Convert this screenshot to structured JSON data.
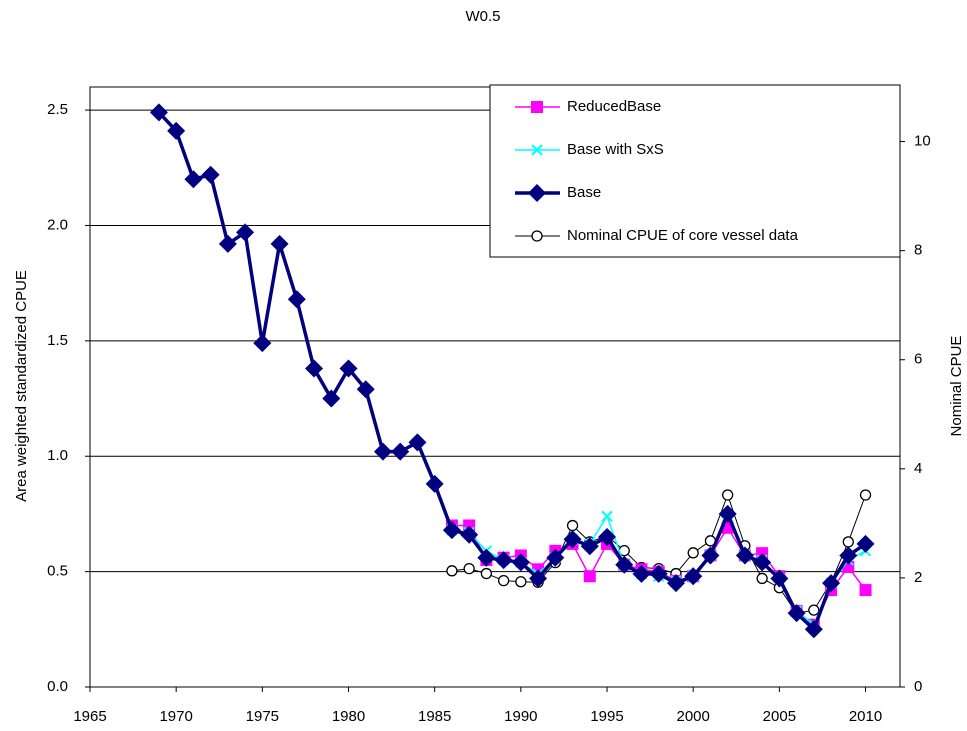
{
  "chart_data": {
    "type": "line",
    "title": "W0.5",
    "y_label": "Area weighted standardized CPUE",
    "y2_label": "Nominal CPUE",
    "xlim": [
      1965,
      2012
    ],
    "xticks": [
      1965,
      1970,
      1975,
      1980,
      1985,
      1990,
      1995,
      2000,
      2005,
      2010
    ],
    "ylim": [
      0,
      2.6
    ],
    "yticks": [
      {
        "value": 0,
        "label": "0.0"
      },
      0.5,
      {
        "value": 1,
        "label": "1.0"
      },
      1.5,
      {
        "value": 2,
        "label": "2.0"
      },
      2.5
    ],
    "y2lim": [
      0,
      11
    ],
    "y2ticks": [
      0,
      2,
      4,
      6,
      8,
      10
    ],
    "grid": true,
    "series": [
      {
        "name": "ReducedBase",
        "color": "#ff00ff",
        "marker": "square",
        "x": [
          1986,
          1987,
          1988,
          1989,
          1990,
          1991,
          1992,
          1993,
          1994,
          1995,
          1996,
          1997,
          1998,
          1999,
          2000,
          2001,
          2002,
          2003,
          2004,
          2005,
          2006,
          2007,
          2008,
          2009,
          2010
        ],
        "values": [
          0.7,
          0.7,
          0.55,
          0.56,
          0.57,
          0.51,
          0.59,
          0.62,
          0.48,
          0.62,
          0.53,
          0.51,
          0.5,
          0.46,
          0.48,
          0.57,
          0.69,
          0.57,
          0.58,
          0.48,
          0.33,
          0.27,
          0.42,
          0.52,
          0.42
        ]
      },
      {
        "name": "Base with SxS",
        "color": "#00ffff",
        "marker": "x",
        "x": [
          1986,
          1987,
          1988,
          1989,
          1990,
          1991,
          1992,
          1993,
          1994,
          1995,
          1996,
          1997,
          1998,
          1999,
          2000,
          2001,
          2002,
          2003,
          2004,
          2005,
          2006,
          2007,
          2008,
          2009,
          2010
        ],
        "values": [
          0.68,
          0.67,
          0.59,
          0.55,
          0.54,
          0.49,
          0.56,
          0.64,
          0.62,
          0.74,
          0.53,
          0.49,
          0.48,
          0.46,
          0.48,
          0.57,
          0.74,
          0.57,
          0.55,
          0.47,
          0.33,
          0.27,
          0.45,
          0.55,
          0.59
        ]
      },
      {
        "name": "Base",
        "color": "#000080",
        "marker": "diamond",
        "x": [
          1969,
          1970,
          1971,
          1972,
          1973,
          1974,
          1975,
          1976,
          1977,
          1978,
          1979,
          1980,
          1981,
          1982,
          1983,
          1984,
          1985,
          1986,
          1987,
          1988,
          1989,
          1990,
          1991,
          1992,
          1993,
          1994,
          1995,
          1996,
          1997,
          1998,
          1999,
          2000,
          2001,
          2002,
          2003,
          2004,
          2005,
          2006,
          2007,
          2008,
          2009,
          2010
        ],
        "values": [
          2.49,
          2.41,
          2.2,
          2.22,
          1.92,
          1.97,
          1.49,
          1.92,
          1.68,
          1.38,
          1.25,
          1.38,
          1.29,
          1.02,
          1.02,
          1.06,
          0.88,
          0.68,
          0.66,
          0.56,
          0.55,
          0.54,
          0.47,
          0.56,
          0.64,
          0.61,
          0.65,
          0.53,
          0.49,
          0.49,
          0.45,
          0.48,
          0.57,
          0.75,
          0.57,
          0.54,
          0.47,
          0.32,
          0.25,
          0.45,
          0.57,
          0.62
        ]
      },
      {
        "name": "Nominal CPUE of core vessel data",
        "color": "#000000",
        "marker": "circle",
        "axis": "y2",
        "x": [
          1986,
          1987,
          1988,
          1989,
          1990,
          1991,
          1992,
          1993,
          1994,
          1995,
          1996,
          1997,
          1998,
          1999,
          2000,
          2001,
          2002,
          2003,
          2004,
          2005,
          2006,
          2007,
          2008,
          2009,
          2010
        ],
        "values": [
          2.13,
          2.17,
          2.08,
          1.95,
          1.93,
          1.92,
          2.28,
          2.96,
          2.66,
          2.77,
          2.5,
          2.19,
          2.17,
          2.08,
          2.46,
          2.68,
          3.52,
          2.59,
          1.99,
          1.82,
          1.35,
          1.41,
          1.92,
          2.66,
          3.52
        ]
      }
    ]
  }
}
